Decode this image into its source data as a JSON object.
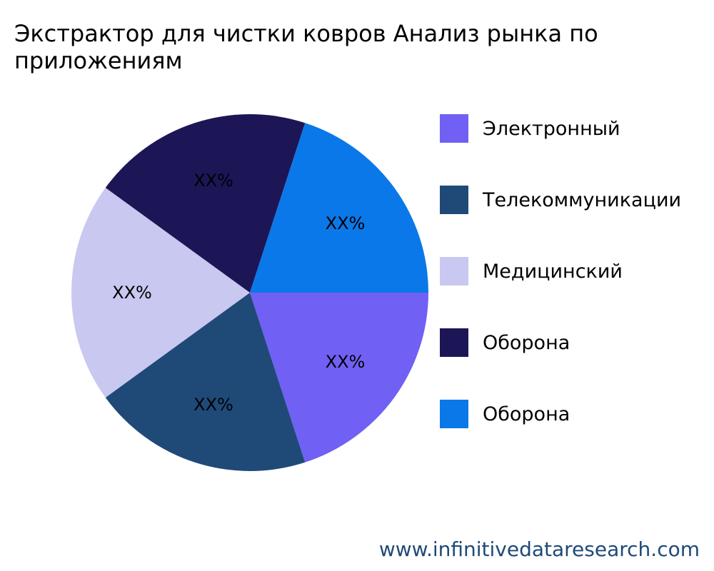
{
  "chart_data": {
    "type": "pie",
    "title": "Экстрактор для чистки ковров Анализ рынка по приложениям",
    "categories": [
      "Электронный",
      "Телекоммуникации",
      "Медицинский",
      "Оборона",
      "Оборона"
    ],
    "values": [
      20,
      20,
      20,
      20,
      20
    ],
    "data_labels": [
      "XX%",
      "XX%",
      "XX%",
      "XX%",
      "XX%"
    ],
    "colors": [
      "#7060f4",
      "#1f4a78",
      "#c8c8f0",
      "#1c1656",
      "#0a78e8"
    ],
    "legend_position": "right"
  },
  "footer": {
    "website": "www.infinitivedataresearch.com"
  }
}
